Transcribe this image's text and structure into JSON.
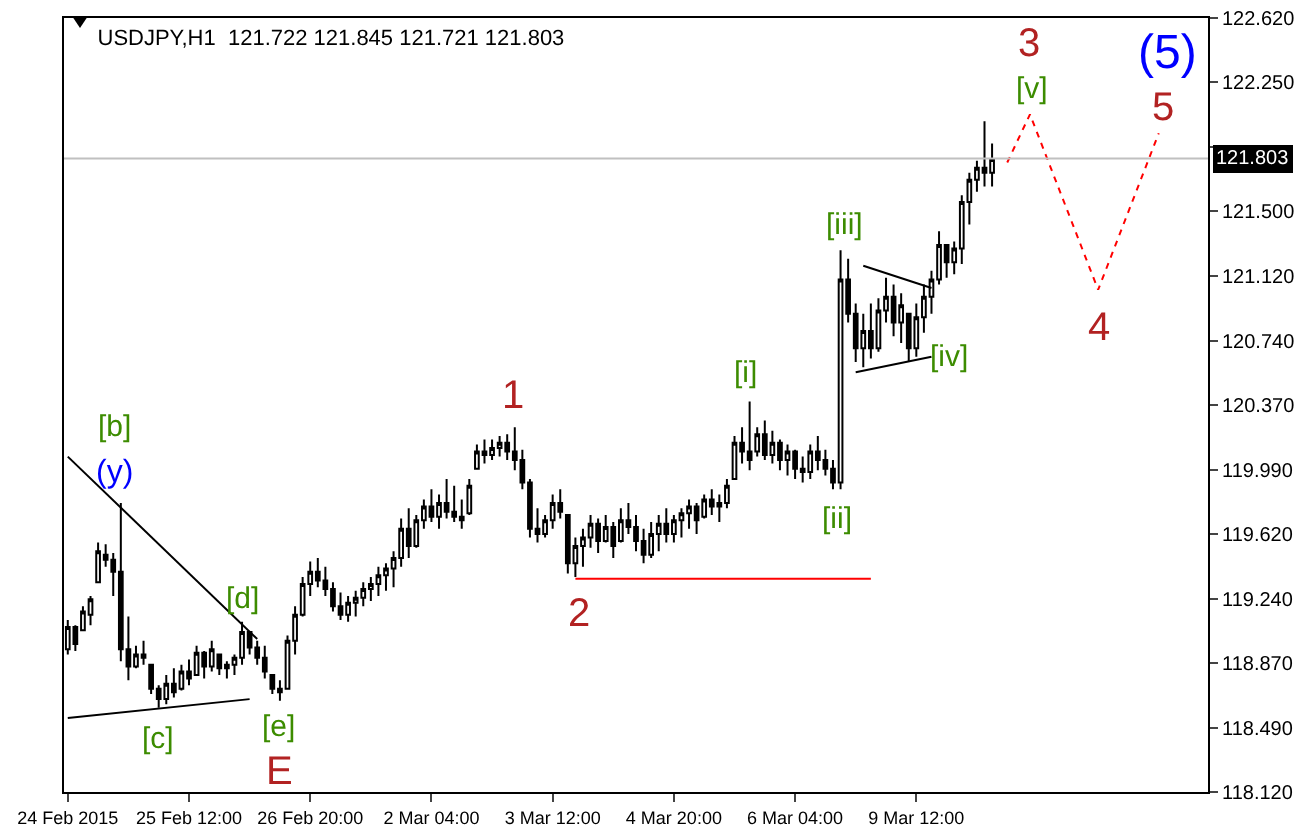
{
  "chart_data": {
    "type": "candlestick",
    "title": "USDJPY,H1  121.722 121.845 121.721 121.803",
    "color": "#000000",
    "categories": [
      "24 Feb 2015",
      null,
      null,
      null,
      null,
      null,
      null,
      null,
      null,
      null,
      null,
      null,
      null,
      null,
      null,
      null,
      "25 Feb 12:00",
      null,
      null,
      null,
      null,
      null,
      null,
      null,
      null,
      null,
      null,
      null,
      null,
      null,
      null,
      null,
      "26 Feb 20:00",
      null,
      null,
      null,
      null,
      null,
      null,
      null,
      null,
      null,
      null,
      null,
      null,
      null,
      null,
      null,
      "2 Mar 04:00",
      null,
      null,
      null,
      null,
      null,
      null,
      null,
      null,
      null,
      null,
      null,
      null,
      null,
      null,
      null,
      "3 Mar 12:00",
      null,
      null,
      null,
      null,
      null,
      null,
      null,
      null,
      null,
      null,
      null,
      null,
      null,
      null,
      null,
      "4 Mar 20:00",
      null,
      null,
      null,
      null,
      null,
      null,
      null,
      null,
      null,
      null,
      null,
      null,
      null,
      null,
      null,
      "6 Mar 04:00",
      null,
      null,
      null,
      null,
      null,
      null,
      null,
      null,
      null,
      null,
      null,
      null,
      null,
      null,
      null,
      "9 Mar 12:00",
      null,
      null,
      null,
      null,
      null,
      null,
      null,
      null,
      null,
      null,
      null,
      null,
      null,
      null,
      null,
      null,
      null,
      null,
      null,
      null,
      null,
      null,
      null,
      null,
      null,
      null,
      null,
      null,
      null,
      null,
      null,
      null,
      null,
      null,
      null,
      null,
      null,
      null
    ],
    "ohlc": [
      [
        118.95,
        119.12,
        118.92,
        119.08
      ],
      [
        119.08,
        119.09,
        118.94,
        118.98
      ],
      [
        119.06,
        119.2,
        119.06,
        119.17
      ],
      [
        119.15,
        119.26,
        119.09,
        119.24
      ],
      [
        119.34,
        119.57,
        119.34,
        119.52
      ],
      [
        119.5,
        119.56,
        119.43,
        119.47
      ],
      [
        119.47,
        119.51,
        119.26,
        119.4
      ],
      [
        119.4,
        119.8,
        118.88,
        118.95
      ],
      [
        118.95,
        119.14,
        118.77,
        118.85
      ],
      [
        118.85,
        118.97,
        118.84,
        118.92
      ],
      [
        118.92,
        119.0,
        118.86,
        118.9
      ],
      [
        118.86,
        118.86,
        118.69,
        118.72
      ],
      [
        118.72,
        118.74,
        118.61,
        118.66
      ],
      [
        118.66,
        118.8,
        118.63,
        118.75
      ],
      [
        118.75,
        118.84,
        118.67,
        118.7
      ],
      [
        118.72,
        118.86,
        118.71,
        118.82
      ],
      [
        118.82,
        118.89,
        118.74,
        118.78
      ],
      [
        118.8,
        118.97,
        118.8,
        118.93
      ],
      [
        118.93,
        118.94,
        118.78,
        118.85
      ],
      [
        118.85,
        119.0,
        118.82,
        118.95
      ],
      [
        118.92,
        118.92,
        118.8,
        118.84
      ],
      [
        118.84,
        118.88,
        118.78,
        118.86
      ],
      [
        118.86,
        118.92,
        118.8,
        118.9
      ],
      [
        118.9,
        119.11,
        118.86,
        119.05
      ],
      [
        119.05,
        119.05,
        118.92,
        118.96
      ],
      [
        118.96,
        119.0,
        118.86,
        118.9
      ],
      [
        118.9,
        118.97,
        118.78,
        118.82
      ],
      [
        118.8,
        118.8,
        118.69,
        118.72
      ],
      [
        118.72,
        118.77,
        118.65,
        118.7
      ],
      [
        118.72,
        119.03,
        118.72,
        119.0
      ],
      [
        119.0,
        119.2,
        118.92,
        119.15
      ],
      [
        119.15,
        119.37,
        119.14,
        119.33
      ],
      [
        119.33,
        119.46,
        119.26,
        119.4
      ],
      [
        119.4,
        119.48,
        119.31,
        119.35
      ],
      [
        119.35,
        119.43,
        119.26,
        119.3
      ],
      [
        119.3,
        119.34,
        119.17,
        119.2
      ],
      [
        119.2,
        119.28,
        119.12,
        119.15
      ],
      [
        119.15,
        119.26,
        119.11,
        119.22
      ],
      [
        119.22,
        119.29,
        119.14,
        119.25
      ],
      [
        119.25,
        119.34,
        119.2,
        119.3
      ],
      [
        119.3,
        119.37,
        119.23,
        119.33
      ],
      [
        119.33,
        119.43,
        119.26,
        119.38
      ],
      [
        119.38,
        119.45,
        119.29,
        119.42
      ],
      [
        119.42,
        119.52,
        119.31,
        119.48
      ],
      [
        119.48,
        119.71,
        119.43,
        119.65
      ],
      [
        119.65,
        119.77,
        119.48,
        119.55
      ],
      [
        119.55,
        119.73,
        119.54,
        119.7
      ],
      [
        119.7,
        119.82,
        119.65,
        119.78
      ],
      [
        119.78,
        119.88,
        119.69,
        119.72
      ],
      [
        119.72,
        119.85,
        119.65,
        119.8
      ],
      [
        119.8,
        119.94,
        119.71,
        119.75
      ],
      [
        119.75,
        119.9,
        119.69,
        119.72
      ],
      [
        119.72,
        119.82,
        119.65,
        119.7
      ],
      [
        119.74,
        119.94,
        119.73,
        119.9
      ],
      [
        120.0,
        120.14,
        120.0,
        120.1
      ],
      [
        120.1,
        120.17,
        120.03,
        120.08
      ],
      [
        120.08,
        120.17,
        120.05,
        120.12
      ],
      [
        120.12,
        120.19,
        120.07,
        120.15
      ],
      [
        120.15,
        120.2,
        120.05,
        120.1
      ],
      [
        120.1,
        120.24,
        119.99,
        120.05
      ],
      [
        120.05,
        120.11,
        119.88,
        119.92
      ],
      [
        119.92,
        119.94,
        119.6,
        119.65
      ],
      [
        119.65,
        119.77,
        119.57,
        119.62
      ],
      [
        119.62,
        119.73,
        119.6,
        119.7
      ],
      [
        119.7,
        119.85,
        119.65,
        119.8
      ],
      [
        119.8,
        119.88,
        119.71,
        119.75
      ],
      [
        119.73,
        119.73,
        119.39,
        119.45
      ],
      [
        119.45,
        119.6,
        119.37,
        119.55
      ],
      [
        119.55,
        119.65,
        119.43,
        119.6
      ],
      [
        119.6,
        119.73,
        119.54,
        119.68
      ],
      [
        119.68,
        119.71,
        119.51,
        119.58
      ],
      [
        119.58,
        119.73,
        119.57,
        119.66
      ],
      [
        119.66,
        119.69,
        119.48,
        119.55
      ],
      [
        119.58,
        119.77,
        119.57,
        119.7
      ],
      [
        119.7,
        119.8,
        119.62,
        119.66
      ],
      [
        119.66,
        119.73,
        119.52,
        119.58
      ],
      [
        119.58,
        119.65,
        119.45,
        119.5
      ],
      [
        119.5,
        119.69,
        119.48,
        119.62
      ],
      [
        119.62,
        119.73,
        119.52,
        119.68
      ],
      [
        119.68,
        119.77,
        119.57,
        119.62
      ],
      [
        119.62,
        119.73,
        119.57,
        119.7
      ],
      [
        119.7,
        119.77,
        119.6,
        119.74
      ],
      [
        119.74,
        119.82,
        119.65,
        119.78
      ],
      [
        119.78,
        119.8,
        119.62,
        119.7
      ],
      [
        119.72,
        119.85,
        119.71,
        119.82
      ],
      [
        119.82,
        119.88,
        119.73,
        119.78
      ],
      [
        119.78,
        119.85,
        119.69,
        119.8
      ],
      [
        119.8,
        119.94,
        119.77,
        119.9
      ],
      [
        119.94,
        120.19,
        119.94,
        120.15
      ],
      [
        120.15,
        120.24,
        120.03,
        120.1
      ],
      [
        120.1,
        120.39,
        119.99,
        120.05
      ],
      [
        120.1,
        120.24,
        120.07,
        120.2
      ],
      [
        120.2,
        120.28,
        120.05,
        120.08
      ],
      [
        120.08,
        120.22,
        120.03,
        120.15
      ],
      [
        120.15,
        120.17,
        119.99,
        120.05
      ],
      [
        120.05,
        120.14,
        119.96,
        120.1
      ],
      [
        120.1,
        120.11,
        119.94,
        120.0
      ],
      [
        120.0,
        120.07,
        119.92,
        119.98
      ],
      [
        119.98,
        120.14,
        119.94,
        120.1
      ],
      [
        120.1,
        120.19,
        119.99,
        120.05
      ],
      [
        120.05,
        120.11,
        119.96,
        120.0
      ],
      [
        120.0,
        120.05,
        119.88,
        119.92
      ],
      [
        119.92,
        121.27,
        119.88,
        121.1
      ],
      [
        121.1,
        121.22,
        120.85,
        120.9
      ],
      [
        120.9,
        120.96,
        120.62,
        120.7
      ],
      [
        120.7,
        120.9,
        120.59,
        120.8
      ],
      [
        120.8,
        120.96,
        120.64,
        120.7
      ],
      [
        120.7,
        120.99,
        120.68,
        120.92
      ],
      [
        120.92,
        121.11,
        120.85,
        121.0
      ],
      [
        121.0,
        121.07,
        120.77,
        120.85
      ],
      [
        120.85,
        121.02,
        120.73,
        120.95
      ],
      [
        120.9,
        120.9,
        120.62,
        120.7
      ],
      [
        120.7,
        120.96,
        120.65,
        120.88
      ],
      [
        120.88,
        121.07,
        120.79,
        121.0
      ],
      [
        121.0,
        121.15,
        120.9,
        121.1
      ],
      [
        121.1,
        121.38,
        121.07,
        121.3
      ],
      [
        121.3,
        121.3,
        121.11,
        121.2
      ],
      [
        121.2,
        121.32,
        121.13,
        121.28
      ],
      [
        121.28,
        121.59,
        121.19,
        121.55
      ],
      [
        121.55,
        121.72,
        121.42,
        121.68
      ],
      [
        121.68,
        121.79,
        121.61,
        121.75
      ],
      [
        121.75,
        122.02,
        121.64,
        121.72
      ],
      [
        121.72,
        121.89,
        121.64,
        121.8
      ],
      null,
      null,
      null,
      null,
      null,
      null,
      null,
      null,
      null,
      null,
      null,
      null,
      null,
      null,
      null,
      null,
      null,
      null,
      null,
      null,
      null,
      null,
      null,
      null,
      null,
      null,
      null,
      null
    ],
    "series": [
      {
        "type": "line",
        "color": "#000000",
        "values": [
          120.07,
          null,
          null,
          null,
          null,
          null,
          null,
          null,
          null,
          null,
          null,
          null,
          null,
          null,
          null,
          null,
          null,
          null,
          null,
          null,
          null,
          null,
          null,
          null,
          null,
          119.01,
          null,
          null,
          null,
          null,
          null,
          null,
          null,
          null,
          null,
          null,
          null,
          null,
          null,
          null,
          null,
          null,
          null,
          null,
          null,
          null,
          null,
          null,
          null,
          null,
          null,
          null,
          null,
          null,
          null,
          null,
          null,
          null,
          null,
          null,
          null,
          null,
          null,
          null,
          null,
          null,
          null,
          null,
          null,
          null,
          null,
          null,
          null,
          null,
          null,
          null,
          null,
          null,
          null,
          null,
          null,
          null,
          null,
          null,
          null,
          null,
          null,
          null,
          null,
          null,
          null,
          null,
          null,
          null,
          null,
          null,
          null,
          null,
          null,
          null,
          null,
          null,
          null,
          null,
          null,
          null,
          null,
          null,
          null,
          null,
          null,
          null,
          null,
          null,
          null,
          null,
          null,
          null,
          null,
          null,
          null,
          null,
          null,
          null,
          null,
          null,
          null,
          null,
          null,
          null,
          null,
          null,
          null,
          null,
          null,
          null,
          null,
          null,
          null,
          null,
          null,
          null,
          null,
          null,
          null,
          null,
          null,
          null,
          null,
          null,
          null
        ]
      },
      {
        "type": "line",
        "color": "#000000",
        "values": [
          118.55,
          null,
          null,
          null,
          null,
          null,
          null,
          null,
          null,
          null,
          null,
          null,
          null,
          null,
          null,
          null,
          null,
          null,
          null,
          null,
          null,
          null,
          null,
          null,
          118.66,
          null,
          null,
          null,
          null,
          null,
          null,
          null,
          null,
          null,
          null,
          null,
          null,
          null,
          null,
          null,
          null,
          null,
          null,
          null,
          null,
          null,
          null,
          null,
          null,
          null,
          null,
          null,
          null,
          null,
          null,
          null,
          null,
          null,
          null,
          null,
          null,
          null,
          null,
          null,
          null,
          null,
          null,
          null,
          null,
          null,
          null,
          null,
          null,
          null,
          null,
          null,
          null,
          null,
          null,
          null,
          null,
          null,
          null,
          null,
          null,
          null,
          null,
          null,
          null,
          null,
          null,
          null,
          null,
          null,
          null,
          null,
          null,
          null,
          null,
          null,
          null,
          null,
          null,
          null,
          null,
          null,
          null,
          null,
          null,
          null,
          null,
          null,
          null,
          null,
          null,
          null,
          null,
          null,
          null,
          null,
          null,
          null,
          null,
          null,
          null,
          null,
          null,
          null,
          null,
          null,
          null,
          null,
          null,
          null,
          null,
          null,
          null,
          null,
          null,
          null,
          null,
          null,
          null,
          null,
          null,
          null,
          null,
          null,
          null,
          null,
          null
        ]
      },
      {
        "type": "line",
        "color": "#000000",
        "values": [
          null,
          null,
          null,
          null,
          null,
          null,
          null,
          null,
          null,
          null,
          null,
          null,
          null,
          null,
          null,
          null,
          null,
          null,
          null,
          null,
          null,
          null,
          null,
          null,
          null,
          null,
          null,
          null,
          null,
          null,
          null,
          null,
          null,
          null,
          null,
          null,
          null,
          null,
          null,
          null,
          null,
          null,
          null,
          null,
          null,
          null,
          null,
          null,
          null,
          null,
          null,
          null,
          null,
          null,
          null,
          null,
          null,
          null,
          null,
          null,
          null,
          null,
          null,
          null,
          null,
          null,
          null,
          null,
          null,
          null,
          null,
          null,
          null,
          null,
          null,
          null,
          null,
          null,
          null,
          null,
          null,
          null,
          null,
          null,
          null,
          null,
          null,
          null,
          null,
          null,
          null,
          null,
          null,
          null,
          null,
          null,
          null,
          null,
          null,
          null,
          null,
          null,
          null,
          null,
          null,
          121.18,
          null,
          null,
          null,
          null,
          null,
          null,
          null,
          null,
          121.05,
          null,
          null,
          null,
          null,
          null,
          null,
          null,
          null,
          null,
          null,
          null,
          null,
          null,
          null,
          null,
          null,
          null,
          null,
          null,
          null,
          null,
          null,
          null,
          null,
          null,
          null,
          null,
          null,
          null,
          null,
          null,
          null,
          null,
          null,
          null,
          null
        ]
      },
      {
        "type": "line",
        "color": "#000000",
        "values": [
          null,
          null,
          null,
          null,
          null,
          null,
          null,
          null,
          null,
          null,
          null,
          null,
          null,
          null,
          null,
          null,
          null,
          null,
          null,
          null,
          null,
          null,
          null,
          null,
          null,
          null,
          null,
          null,
          null,
          null,
          null,
          null,
          null,
          null,
          null,
          null,
          null,
          null,
          null,
          null,
          null,
          null,
          null,
          null,
          null,
          null,
          null,
          null,
          null,
          null,
          null,
          null,
          null,
          null,
          null,
          null,
          null,
          null,
          null,
          null,
          null,
          null,
          null,
          null,
          null,
          null,
          null,
          null,
          null,
          null,
          null,
          null,
          null,
          null,
          null,
          null,
          null,
          null,
          null,
          null,
          null,
          null,
          null,
          null,
          null,
          null,
          null,
          null,
          null,
          null,
          null,
          null,
          null,
          null,
          null,
          null,
          null,
          null,
          null,
          null,
          null,
          null,
          null,
          null,
          120.56,
          null,
          null,
          null,
          null,
          null,
          null,
          null,
          null,
          null,
          120.65,
          null,
          null,
          null,
          null,
          null,
          null,
          null,
          null,
          null,
          null,
          null,
          null,
          null,
          null,
          null,
          null,
          null,
          null,
          null,
          null,
          null,
          null,
          null,
          null,
          null,
          null,
          null,
          null,
          null,
          null,
          null,
          null,
          null,
          null,
          null,
          null
        ]
      },
      {
        "type": "line",
        "color": "#ff0000",
        "values": [
          null,
          null,
          null,
          null,
          null,
          null,
          null,
          null,
          null,
          null,
          null,
          null,
          null,
          null,
          null,
          null,
          null,
          null,
          null,
          null,
          null,
          null,
          null,
          null,
          null,
          null,
          null,
          null,
          null,
          null,
          null,
          null,
          null,
          null,
          null,
          null,
          null,
          null,
          null,
          null,
          null,
          null,
          null,
          null,
          null,
          null,
          null,
          null,
          null,
          null,
          null,
          null,
          null,
          null,
          null,
          null,
          null,
          null,
          null,
          null,
          null,
          null,
          null,
          null,
          null,
          null,
          null,
          119.36,
          null,
          null,
          null,
          null,
          null,
          null,
          null,
          null,
          null,
          null,
          null,
          null,
          null,
          null,
          null,
          null,
          null,
          null,
          null,
          null,
          null,
          null,
          null,
          null,
          null,
          null,
          null,
          null,
          null,
          null,
          null,
          null,
          null,
          null,
          null,
          null,
          null,
          null,
          119.36,
          null,
          null,
          null,
          null,
          null,
          null,
          null,
          null,
          null,
          null,
          null,
          null,
          null,
          null,
          null,
          null,
          null,
          null,
          null,
          null,
          null,
          null,
          null,
          null,
          null,
          null,
          null,
          null,
          null,
          null,
          null,
          null,
          null,
          null,
          null,
          null,
          null,
          null,
          null,
          null,
          null,
          null,
          null,
          null
        ]
      },
      {
        "type": "line",
        "color": "#ff0000",
        "line_style": "dotted",
        "values": [
          null,
          null,
          null,
          null,
          null,
          null,
          null,
          null,
          null,
          null,
          null,
          null,
          null,
          null,
          null,
          null,
          null,
          null,
          null,
          null,
          null,
          null,
          null,
          null,
          null,
          null,
          null,
          null,
          null,
          null,
          null,
          null,
          null,
          null,
          null,
          null,
          null,
          null,
          null,
          null,
          null,
          null,
          null,
          null,
          null,
          null,
          null,
          null,
          null,
          null,
          null,
          null,
          null,
          null,
          null,
          null,
          null,
          null,
          null,
          null,
          null,
          null,
          null,
          null,
          null,
          null,
          null,
          null,
          null,
          null,
          null,
          null,
          null,
          null,
          null,
          null,
          null,
          null,
          null,
          null,
          null,
          null,
          null,
          null,
          null,
          null,
          null,
          null,
          null,
          null,
          null,
          null,
          null,
          null,
          null,
          null,
          null,
          null,
          null,
          null,
          null,
          null,
          null,
          null,
          null,
          null,
          null,
          null,
          null,
          null,
          null,
          null,
          null,
          null,
          null,
          null,
          null,
          null,
          null,
          null,
          null,
          null,
          null,
          null,
          121.78,
          null,
          null,
          122.06,
          null,
          null,
          null,
          null,
          null,
          null,
          null,
          null,
          121.04,
          null,
          null,
          null,
          null,
          null,
          null,
          null,
          121.95,
          null,
          null,
          null,
          null,
          null,
          null
        ]
      }
    ],
    "ylim": [
      118.12,
      122.62
    ],
    "yticks": [
      {
        "value": 118.12,
        "label": "118.120"
      },
      {
        "value": 118.49,
        "label": "118.490"
      },
      {
        "value": 118.87,
        "label": "118.870"
      },
      {
        "value": 119.24,
        "label": "119.240"
      },
      {
        "value": 119.62,
        "label": "119.620"
      },
      {
        "value": 119.99,
        "label": "119.990"
      },
      {
        "value": 120.37,
        "label": "120.370"
      },
      {
        "value": 120.74,
        "label": "120.740"
      },
      {
        "value": 121.12,
        "label": "121.120"
      },
      {
        "value": 121.5,
        "label": "121.500"
      },
      {
        "value": 121.87,
        "label": null
      },
      {
        "value": 122.25,
        "label": "122.250"
      },
      {
        "value": 122.62,
        "label": "122.620"
      }
    ],
    "ref_lines": [
      {
        "axis": "y",
        "value": 121.803,
        "label": "121.803",
        "color": "#c0c0c0"
      }
    ],
    "annotations": [
      "[b]",
      "(y)",
      "[c]",
      "[d]",
      "[e]",
      "E",
      "1",
      "2",
      "[i]",
      "[ii]",
      "[iii]",
      "[iv]",
      "[v]",
      "3",
      "4",
      "5",
      "(5)"
    ]
  }
}
